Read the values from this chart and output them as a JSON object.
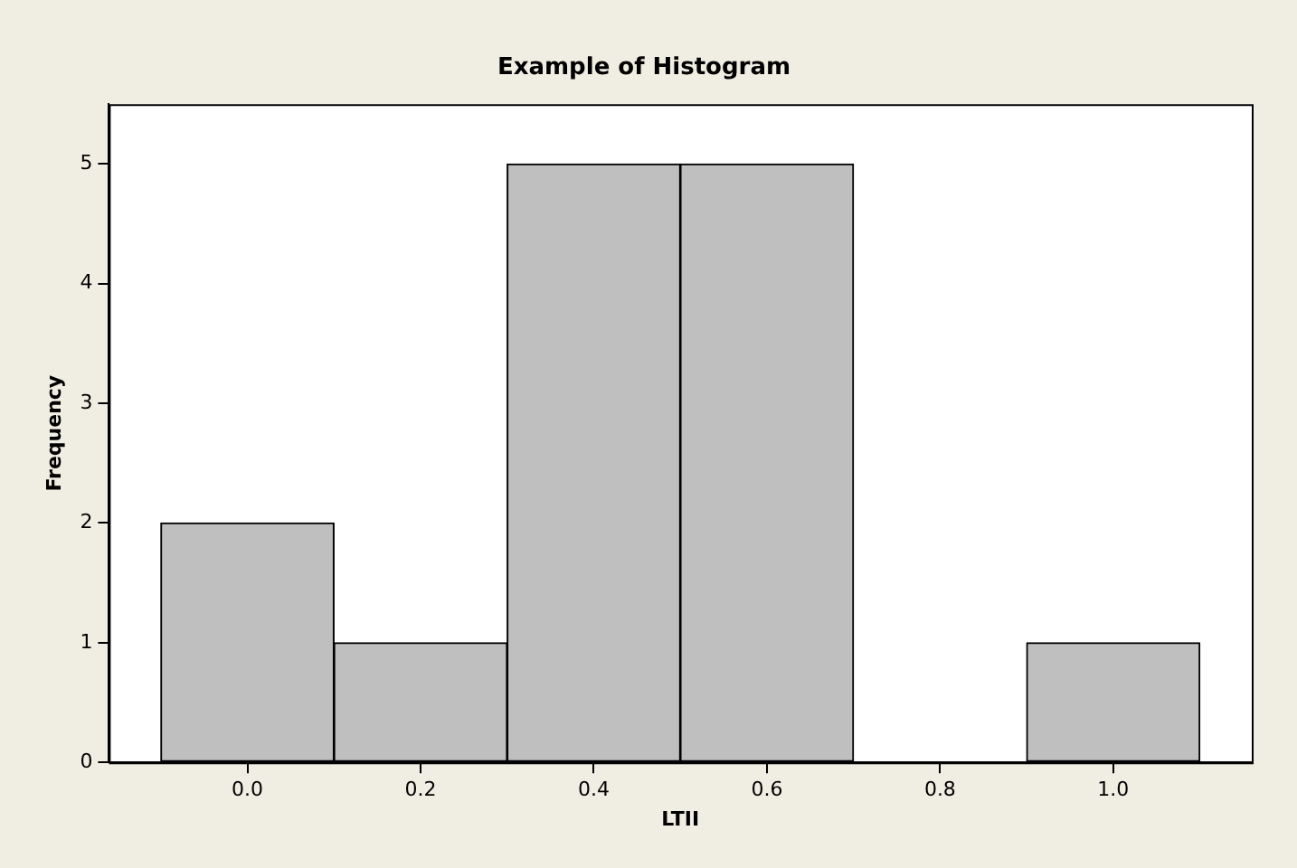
{
  "chart_data": {
    "type": "histogram",
    "title": "Example of Histogram",
    "xlabel": "LTII",
    "ylabel": "Frequency",
    "bins": [
      -0.1,
      0.1,
      0.3,
      0.5,
      0.7,
      0.9,
      1.1
    ],
    "values": [
      2,
      1,
      5,
      5,
      0,
      1
    ],
    "color": "#bfbfbf",
    "xlim": [
      -0.16,
      1.16
    ],
    "xticks": [
      {
        "value": 0,
        "label": "0.0"
      },
      {
        "value": 0.2,
        "label": "0.2"
      },
      {
        "value": 0.4,
        "label": "0.4"
      },
      {
        "value": 0.6,
        "label": "0.6"
      },
      {
        "value": 0.8,
        "label": "0.8"
      },
      {
        "value": 1,
        "label": "1.0"
      }
    ],
    "ylim": [
      0,
      5.5
    ],
    "yticks": [
      0,
      1,
      2,
      3,
      4,
      5
    ],
    "grid": false,
    "legend": false
  }
}
